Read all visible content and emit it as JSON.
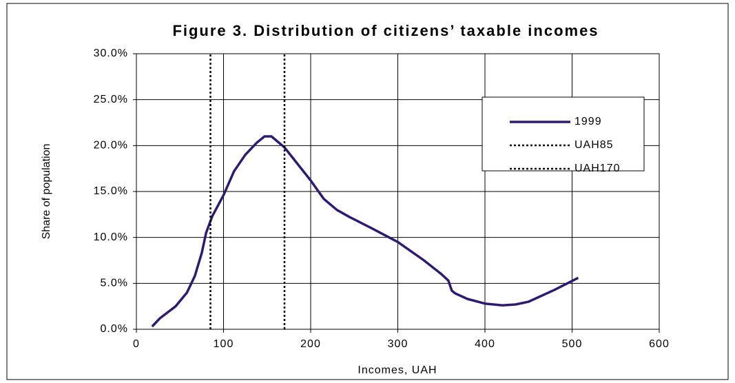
{
  "chart_data": {
    "type": "line",
    "title": "Figure 3. Distribution of citizens’ taxable incomes",
    "x_label": "Incomes, UAH",
    "y_label": "Share of population",
    "xlim": [
      0,
      600
    ],
    "xticks": [
      0,
      100,
      200,
      300,
      400,
      500,
      600
    ],
    "ylim": [
      0,
      30
    ],
    "yticks": [
      {
        "value": 0,
        "label": "0.0%"
      },
      {
        "value": 5,
        "label": "5.0%"
      },
      {
        "value": 10,
        "label": "10.0%"
      },
      {
        "value": 15,
        "label": "15.0%"
      },
      {
        "value": 20,
        "label": "20.0%"
      },
      {
        "value": 25,
        "label": "25.0%"
      },
      {
        "value": 30,
        "label": "30.0%"
      }
    ],
    "grid": true,
    "legend": "upper right",
    "series": [
      {
        "name": "1999",
        "color": "#2e1a6e",
        "style": "solid",
        "x": [
          18,
          27,
          45,
          58,
          67,
          75,
          80,
          87,
          100,
          112,
          125,
          138,
          147,
          155,
          170,
          185,
          200,
          215,
          230,
          245,
          270,
          300,
          330,
          350,
          358,
          362,
          366,
          380,
          400,
          420,
          435,
          450,
          480,
          507
        ],
        "values": [
          0.3,
          1.2,
          2.5,
          4,
          5.8,
          8.3,
          10.5,
          12.3,
          14.6,
          17.2,
          19.0,
          20.3,
          21.0,
          21.0,
          19.8,
          18.0,
          16.2,
          14.2,
          13.0,
          12.2,
          11.0,
          9.5,
          7.5,
          6.0,
          5.3,
          4.2,
          3.9,
          3.3,
          2.8,
          2.6,
          2.7,
          3.0,
          4.3,
          5.6
        ]
      },
      {
        "name": "UAH85",
        "color": "#000000",
        "style": "dotted",
        "x": [
          85,
          85
        ],
        "values": [
          0,
          30
        ]
      },
      {
        "name": "UAH170",
        "color": "#000000",
        "style": "dotted",
        "x": [
          170,
          170
        ],
        "values": [
          0,
          30
        ]
      }
    ]
  }
}
